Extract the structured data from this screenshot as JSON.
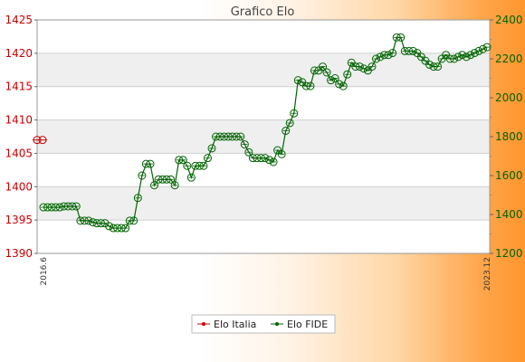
{
  "chart_data": {
    "type": "line",
    "title": "Grafico Elo",
    "grid": true,
    "legend_position": "bottom",
    "y_left": {
      "range": [
        1390,
        1425
      ],
      "ticks": [
        1390,
        1395,
        1400,
        1405,
        1410,
        1415,
        1420,
        1425
      ],
      "color": "#cc0000"
    },
    "y_right": {
      "range": [
        1200,
        2400
      ],
      "ticks": [
        1200,
        1400,
        1600,
        1800,
        2000,
        2200,
        2400
      ],
      "color": "#006400"
    },
    "x_start_label": "2016.6",
    "x_end_label": "2023.12",
    "series": [
      {
        "name": "Elo Italia",
        "color": "#cc0000",
        "axis": "left",
        "values": [
          1407
        ]
      },
      {
        "name": "Elo FIDE",
        "color": "#006400",
        "axis": "right",
        "values": [
          1437,
          1437,
          1437,
          1437,
          1437,
          1442,
          1442,
          1442,
          1442,
          1368,
          1368,
          1368,
          1360,
          1355,
          1355,
          1355,
          1340,
          1330,
          1330,
          1330,
          1330,
          1368,
          1368,
          1485,
          1600,
          1660,
          1660,
          1550,
          1580,
          1580,
          1580,
          1580,
          1550,
          1680,
          1680,
          1650,
          1590,
          1650,
          1650,
          1650,
          1690,
          1740,
          1800,
          1800,
          1800,
          1800,
          1800,
          1800,
          1800,
          1760,
          1720,
          1690,
          1690,
          1690,
          1690,
          1680,
          1670,
          1730,
          1710,
          1830,
          1870,
          1920,
          2090,
          2080,
          2060,
          2060,
          2140,
          2140,
          2160,
          2130,
          2090,
          2100,
          2070,
          2060,
          2120,
          2180,
          2160,
          2160,
          2150,
          2140,
          2160,
          2200,
          2210,
          2220,
          2220,
          2230,
          2310,
          2310,
          2240,
          2240,
          2240,
          2230,
          2210,
          2190,
          2170,
          2160,
          2160,
          2200,
          2220,
          2200,
          2200,
          2210,
          2220,
          2210,
          2220,
          2230,
          2240,
          2250,
          2260
        ]
      }
    ]
  }
}
